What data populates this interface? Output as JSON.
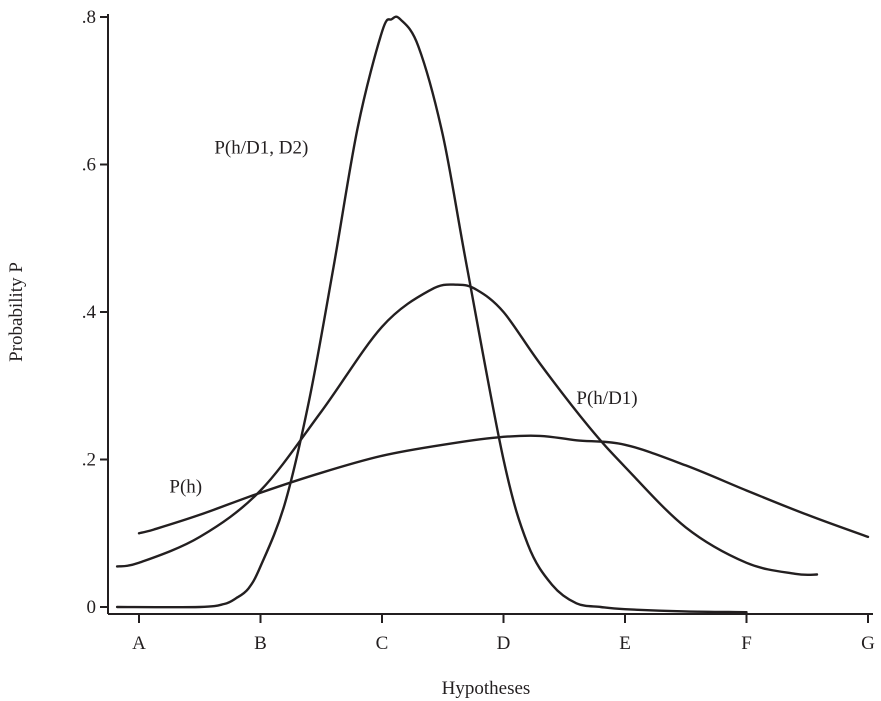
{
  "chart_data": {
    "type": "line",
    "xlabel": "Hypotheses",
    "ylabel": "Probability P",
    "categories": [
      "A",
      "B",
      "C",
      "D",
      "E",
      "F",
      "G"
    ],
    "xlim": [
      -0.25,
      6.0
    ],
    "ylim": [
      0,
      0.8
    ],
    "yticks": [
      {
        "value": 0,
        "label": "0"
      },
      {
        "value": 0.2,
        "label": ".2"
      },
      {
        "value": 0.4,
        "label": ".4"
      },
      {
        "value": 0.6,
        "label": ".6"
      },
      {
        "value": 0.8,
        "label": ".8"
      }
    ],
    "series": [
      {
        "name": "P(h)",
        "x": [
          0.0,
          0.12,
          0.5,
          1.0,
          1.5,
          2.0,
          2.5,
          2.95,
          3.3,
          3.6,
          4.0,
          4.5,
          5.0,
          5.5,
          6.0
        ],
        "y": [
          0.1,
          0.105,
          0.125,
          0.155,
          0.182,
          0.205,
          0.22,
          0.23,
          0.232,
          0.226,
          0.22,
          0.192,
          0.158,
          0.125,
          0.095
        ]
      },
      {
        "name": "P(h/D1)",
        "x": [
          -0.18,
          0.0,
          0.5,
          1.0,
          1.5,
          2.0,
          2.4,
          2.62,
          2.78,
          3.0,
          3.3,
          3.7,
          4.0,
          4.5,
          5.0,
          5.4,
          5.58
        ],
        "y": [
          0.055,
          0.06,
          0.095,
          0.158,
          0.265,
          0.38,
          0.43,
          0.437,
          0.43,
          0.4,
          0.33,
          0.245,
          0.19,
          0.108,
          0.06,
          0.045,
          0.044
        ]
      },
      {
        "name": "P(h/D1, D2)",
        "x": [
          -0.18,
          0.5,
          0.7,
          0.8,
          0.9,
          1.0,
          1.2,
          1.4,
          1.6,
          1.8,
          2.0,
          2.08,
          2.15,
          2.3,
          2.5,
          2.7,
          3.0,
          3.2,
          3.4,
          3.6,
          3.8,
          4.0,
          4.5,
          5.0
        ],
        "y": [
          0.0,
          0.0,
          0.004,
          0.012,
          0.025,
          0.055,
          0.14,
          0.28,
          0.46,
          0.65,
          0.78,
          0.797,
          0.797,
          0.76,
          0.64,
          0.46,
          0.2,
          0.085,
          0.03,
          0.005,
          0.0,
          -0.003,
          -0.006,
          -0.007
        ]
      }
    ],
    "annotations": [
      {
        "series": "P(h)",
        "text": "P(h)",
        "x": 0.25,
        "y": 0.155
      },
      {
        "series": "P(h/D1)",
        "text": "P(h/D1)",
        "x": 3.6,
        "y": 0.275
      },
      {
        "series": "P(h/D1, D2)",
        "text": "P(h/D1, D2)",
        "x": 0.62,
        "y": 0.615
      }
    ],
    "grid": false,
    "legend": "none"
  }
}
